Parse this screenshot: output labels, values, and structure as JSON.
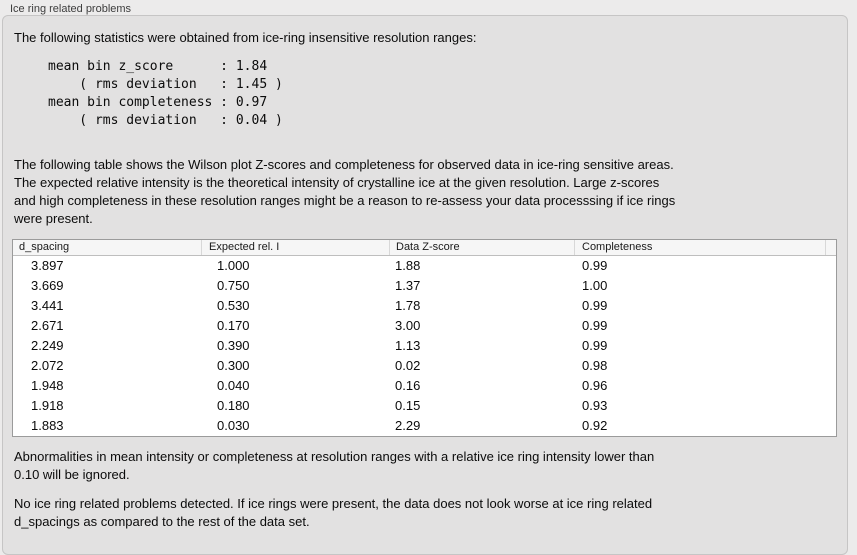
{
  "section": {
    "title": "Ice ring related problems"
  },
  "intro": {
    "text": "The following statistics were obtained from ice-ring insensitive resolution ranges:"
  },
  "stats": {
    "mean_bin_z_score": "1.84",
    "z_score_rms_deviation": "1.45",
    "mean_bin_completeness": "0.97",
    "completeness_rms_deviation": "0.04",
    "lines": [
      "mean bin z_score      : 1.84",
      "    ( rms deviation   : 1.45 )",
      "mean bin completeness : 0.97",
      "    ( rms deviation   : 0.04 )"
    ]
  },
  "description": {
    "lines": [
      "The following table shows the Wilson plot Z-scores and completeness for observed data in ice-ring sensitive areas.",
      "The expected relative intensity is the theoretical intensity of crystalline ice at the given resolution. Large z-scores",
      "and high completeness in these resolution ranges might be a reason to re-assess your data processsing if ice rings",
      "were present."
    ]
  },
  "table": {
    "headers": [
      "d_spacing",
      "Expected rel. I",
      "Data Z-score",
      "Completeness",
      ""
    ],
    "rows": [
      [
        "3.897",
        "1.000",
        "1.88",
        "0.99"
      ],
      [
        "3.669",
        "0.750",
        "1.37",
        "1.00"
      ],
      [
        "3.441",
        "0.530",
        "1.78",
        "0.99"
      ],
      [
        "2.671",
        "0.170",
        "3.00",
        "0.99"
      ],
      [
        "2.249",
        "0.390",
        "1.13",
        "0.99"
      ],
      [
        "2.072",
        "0.300",
        "0.02",
        "0.98"
      ],
      [
        "1.948",
        "0.040",
        "0.16",
        "0.96"
      ],
      [
        "1.918",
        "0.180",
        "0.15",
        "0.93"
      ],
      [
        "1.883",
        "0.030",
        "2.29",
        "0.92"
      ]
    ]
  },
  "note": {
    "lines": [
      "Abnormalities in mean intensity or completeness at resolution ranges with a relative ice ring intensity lower than",
      "0.10 will be ignored."
    ]
  },
  "conclusion": {
    "lines": [
      "No ice ring related problems detected. If ice rings were present, the data does not look worse at ice ring related",
      "d_spacings as compared to the rest of the data set."
    ]
  }
}
